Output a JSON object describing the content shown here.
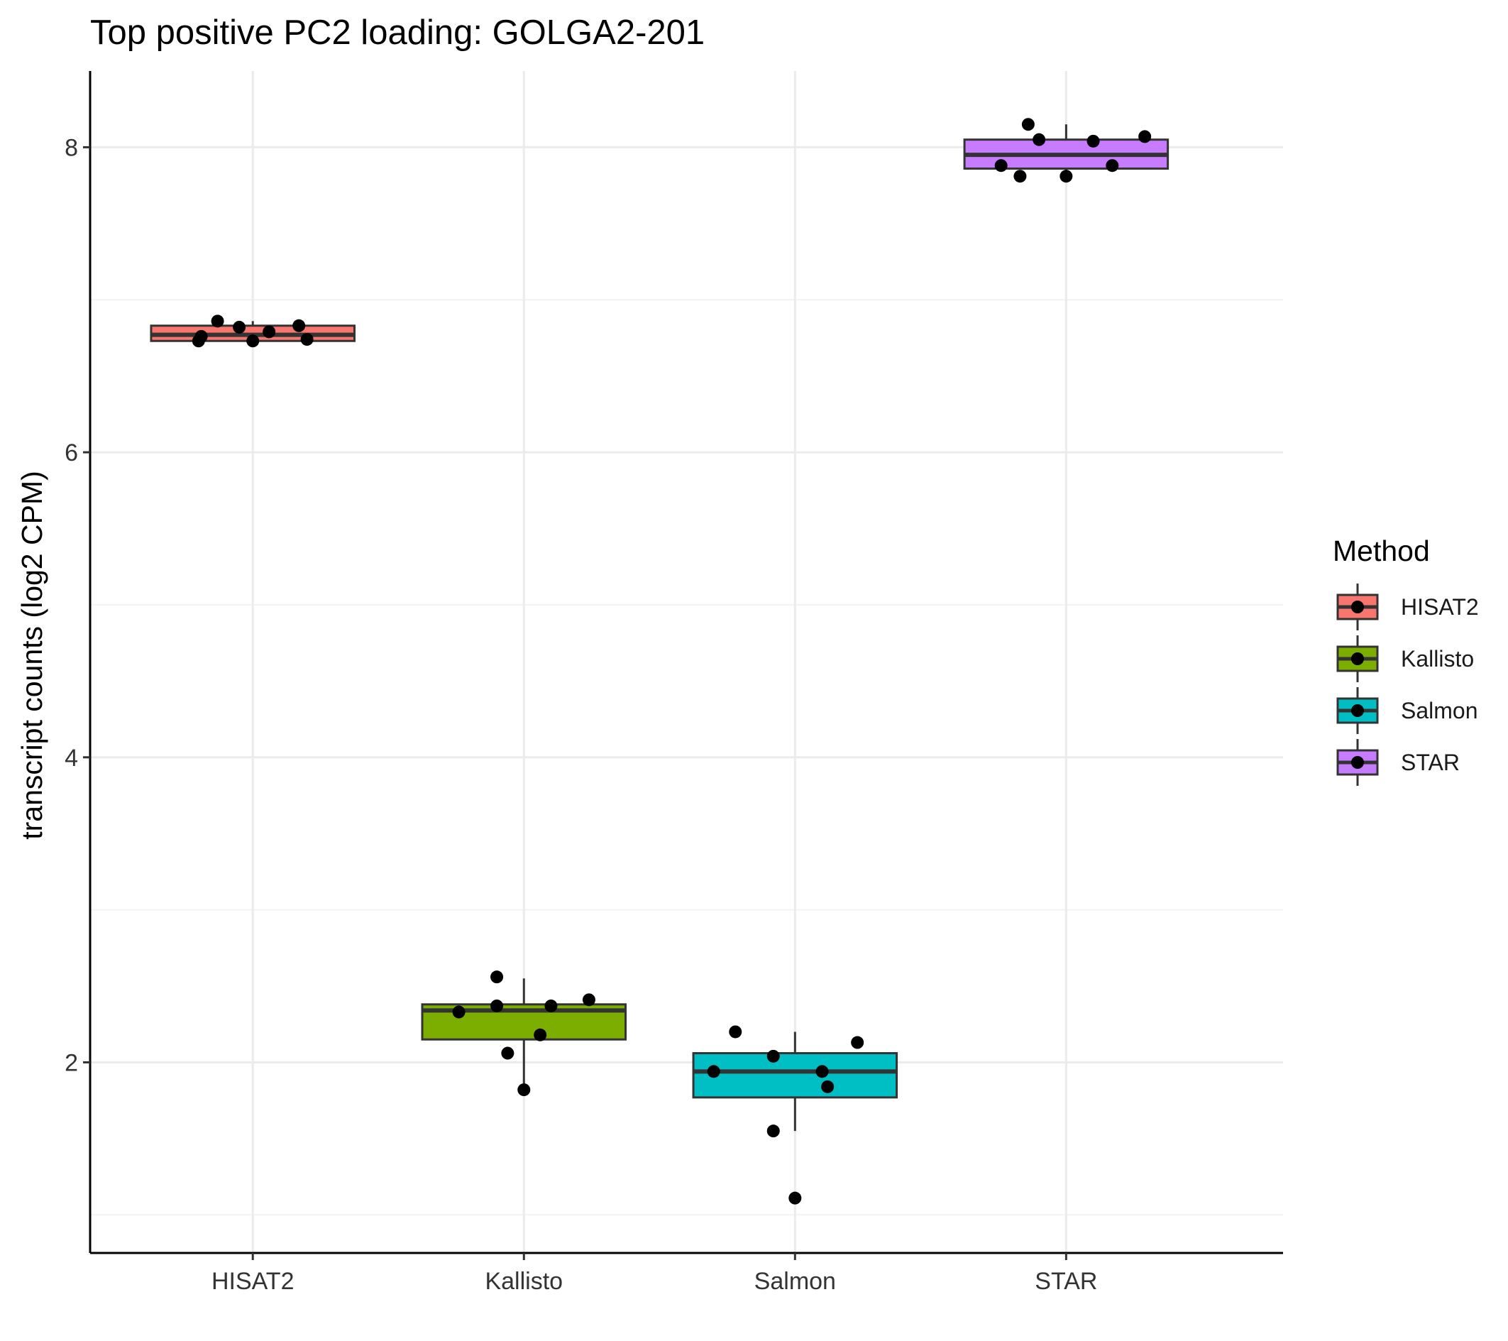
{
  "chart_data": {
    "type": "boxplot",
    "title": "Top positive PC2 loading: GOLGA2-201",
    "xlabel": "",
    "ylabel": "transcript counts (log2 CPM)",
    "ylim": [
      0.75,
      8.5
    ],
    "y_ticks": [
      2,
      4,
      6,
      8
    ],
    "y_minor_ticks": [
      1,
      3,
      5,
      7
    ],
    "grid": true,
    "categories": [
      "HISAT2",
      "Kallisto",
      "Salmon",
      "STAR"
    ],
    "legend": {
      "title": "Method",
      "position": "right",
      "entries": [
        "HISAT2",
        "Kallisto",
        "Salmon",
        "STAR"
      ]
    },
    "series": [
      {
        "name": "HISAT2",
        "color": "#F8766D",
        "box": {
          "lower_whisker": 6.72,
          "q1": 6.73,
          "median": 6.77,
          "q3": 6.83,
          "upper_whisker": 6.86
        },
        "points": [
          {
            "jitter": -0.2,
            "value": 6.73
          },
          {
            "jitter": -0.19,
            "value": 6.76
          },
          {
            "jitter": -0.13,
            "value": 6.86
          },
          {
            "jitter": -0.05,
            "value": 6.82
          },
          {
            "jitter": 0.0,
            "value": 6.73
          },
          {
            "jitter": 0.06,
            "value": 6.79
          },
          {
            "jitter": 0.17,
            "value": 6.83
          },
          {
            "jitter": 0.2,
            "value": 6.74
          }
        ]
      },
      {
        "name": "Kallisto",
        "color": "#7CAE00",
        "box": {
          "lower_whisker": 1.82,
          "q1": 2.15,
          "median": 2.34,
          "q3": 2.38,
          "upper_whisker": 2.55
        },
        "points": [
          {
            "jitter": -0.24,
            "value": 2.33
          },
          {
            "jitter": -0.1,
            "value": 2.56
          },
          {
            "jitter": -0.1,
            "value": 2.37
          },
          {
            "jitter": -0.06,
            "value": 2.06
          },
          {
            "jitter": 0.0,
            "value": 1.82
          },
          {
            "jitter": 0.06,
            "value": 2.18
          },
          {
            "jitter": 0.1,
            "value": 2.37
          },
          {
            "jitter": 0.24,
            "value": 2.41
          }
        ]
      },
      {
        "name": "Salmon",
        "color": "#00BFC4",
        "box": {
          "lower_whisker": 1.55,
          "q1": 1.77,
          "median": 1.94,
          "q3": 2.06,
          "upper_whisker": 2.2
        },
        "points": [
          {
            "jitter": -0.3,
            "value": 1.94
          },
          {
            "jitter": -0.22,
            "value": 2.2
          },
          {
            "jitter": -0.08,
            "value": 2.04
          },
          {
            "jitter": -0.08,
            "value": 1.55
          },
          {
            "jitter": 0.0,
            "value": 1.11
          },
          {
            "jitter": 0.1,
            "value": 1.94
          },
          {
            "jitter": 0.12,
            "value": 1.84
          },
          {
            "jitter": 0.23,
            "value": 2.13
          }
        ]
      },
      {
        "name": "STAR",
        "color": "#C77CFF",
        "box": {
          "lower_whisker": 7.8,
          "q1": 7.86,
          "median": 7.95,
          "q3": 8.05,
          "upper_whisker": 8.15
        },
        "points": [
          {
            "jitter": -0.24,
            "value": 7.88
          },
          {
            "jitter": -0.17,
            "value": 7.81
          },
          {
            "jitter": -0.14,
            "value": 8.15
          },
          {
            "jitter": -0.1,
            "value": 8.05
          },
          {
            "jitter": 0.0,
            "value": 7.81
          },
          {
            "jitter": 0.1,
            "value": 8.04
          },
          {
            "jitter": 0.17,
            "value": 7.88
          },
          {
            "jitter": 0.29,
            "value": 8.07
          }
        ]
      }
    ]
  }
}
